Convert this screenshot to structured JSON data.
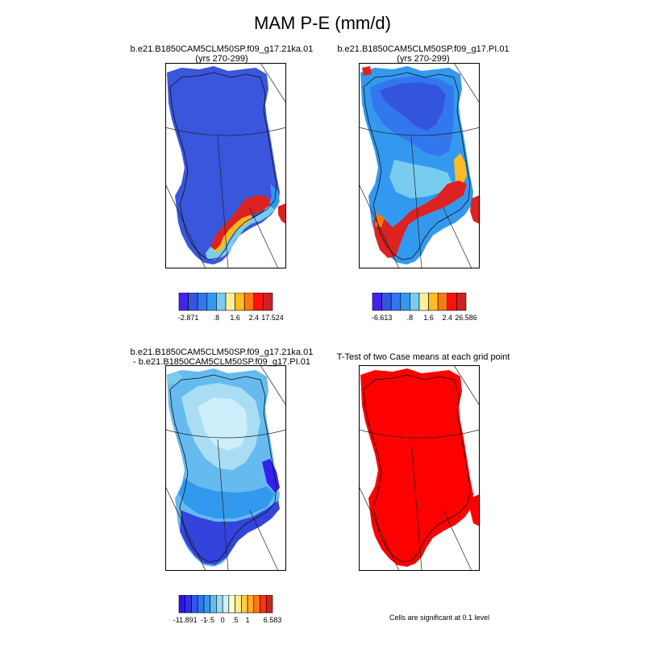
{
  "figure": {
    "title": "MAM P-E (mm/d)",
    "significance_note": "Cells are significant at 0.1 level"
  },
  "chart_data": [
    {
      "type": "heatmap",
      "title": "b.e21.B1850CAM5CLM50SP.f09_g17.21ka.01",
      "subtitle": "(yrs 270-299)",
      "colorbar": {
        "colors": [
          "#4422ee",
          "#3355dd",
          "#3377ee",
          "#3399ee",
          "#77ccf0",
          "#ffee99",
          "#ffbb22",
          "#ff7711",
          "#ff1111",
          "#cc2222"
        ],
        "labels": [
          "-2.871",
          ".8",
          "1.6",
          "2.4",
          "17.524"
        ],
        "label_boundaries": [
          1,
          4,
          6,
          8,
          10
        ]
      }
    },
    {
      "type": "heatmap",
      "title": "b.e21.B1850CAM5CLM50SP.f09_g17.PI.01",
      "subtitle": "(yrs 270-299)",
      "colorbar": {
        "colors": [
          "#4422ee",
          "#3355dd",
          "#3377ee",
          "#3399ee",
          "#77ccf0",
          "#ffee99",
          "#ffbb22",
          "#ff7711",
          "#ff1111",
          "#cc2222"
        ],
        "labels": [
          "-6.613",
          ".8",
          "1.6",
          "2.4",
          "26.586"
        ],
        "label_boundaries": [
          1,
          4,
          6,
          8,
          10
        ]
      }
    },
    {
      "type": "heatmap",
      "title": "b.e21.B1850CAM5CLM50SP.f09_g17.21ka.01",
      "subtitle": "- b.e21.B1850CAM5CLM50SP.f09_g17.PI.01",
      "colorbar": {
        "colors": [
          "#3311ee",
          "#3333dd",
          "#3355ee",
          "#3377ee",
          "#3399ee",
          "#66bbee",
          "#99ddf5",
          "#ccefff",
          "#ffffcc",
          "#ffee88",
          "#ffcc44",
          "#ffaa22",
          "#ff7711",
          "#ff3311",
          "#cc2222"
        ],
        "labels": [
          "-11.891",
          "-1",
          "-.5",
          "0",
          ".5",
          "1",
          "6.583"
        ],
        "label_boundaries": [
          1,
          4,
          5,
          7,
          9,
          11,
          15
        ]
      }
    },
    {
      "type": "heatmap",
      "title": "T-Test of two Case means at each grid point",
      "subtitle": "",
      "fill_color": "#ff0000"
    }
  ]
}
